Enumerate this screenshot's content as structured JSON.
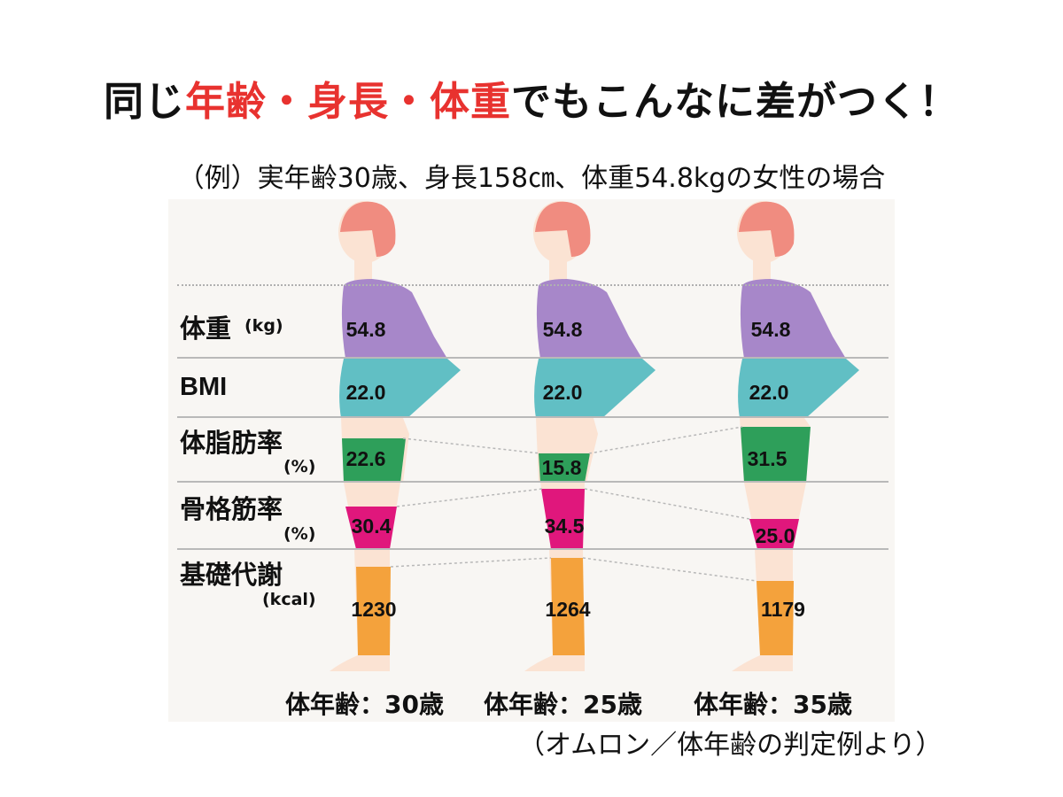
{
  "title": {
    "part1": "同じ",
    "highlight": "年齢・身長・体重",
    "part2": "でもこんなに差がつく！",
    "highlight_color": "#e8322f"
  },
  "subtitle": "（例）実年齢30歳、身長158㎝、体重54.8kgの女性の場合",
  "rows": {
    "weight": {
      "label": "体重",
      "unit": "(kg)"
    },
    "bmi": {
      "label": "BMI"
    },
    "body_fat": {
      "label": "体脂肪率",
      "unit": "(%)"
    },
    "skeletal_muscle": {
      "label": "骨格筋率",
      "unit": "(%)"
    },
    "basal_metabolism": {
      "label": "基礎代謝",
      "unit": "(kcal)"
    }
  },
  "figures": [
    {
      "weight": "54.8",
      "bmi": "22.0",
      "body_fat": "22.6",
      "skeletal_muscle": "30.4",
      "basal_metabolism": "1230",
      "body_age": "体年齢：30歳"
    },
    {
      "weight": "54.8",
      "bmi": "22.0",
      "body_fat": "15.8",
      "skeletal_muscle": "34.5",
      "basal_metabolism": "1264",
      "body_age": "体年齢：25歳"
    },
    {
      "weight": "54.8",
      "bmi": "22.0",
      "body_fat": "31.5",
      "skeletal_muscle": "25.0",
      "basal_metabolism": "1179",
      "body_age": "体年齢：35歳"
    }
  ],
  "source": "（オムロン／体年齢の判定例より）",
  "colors": {
    "hair": "#f08c80",
    "skin": "#fbe3d3",
    "weight": "#a787c9",
    "bmi": "#61bfc4",
    "body_fat": "#2e9f5a",
    "skeletal_muscle": "#e0177c",
    "basal_metabolism": "#f4a23c"
  }
}
